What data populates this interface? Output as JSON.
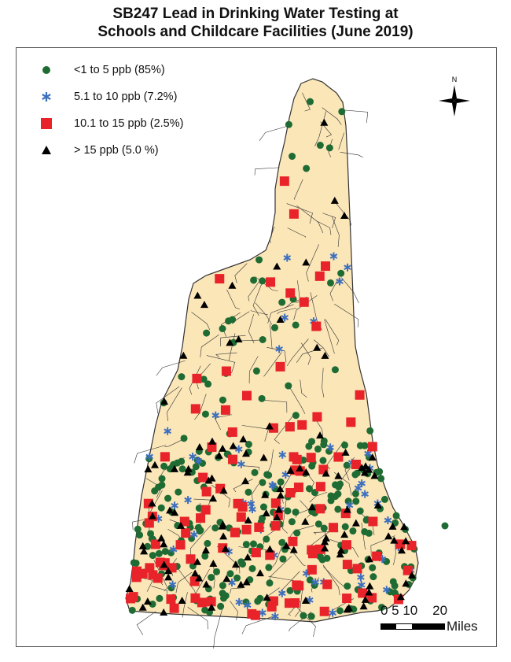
{
  "title": {
    "line1": "SB247 Lead in Drinking Water Testing at",
    "line2": "Schools and Childcare Facilities (June 2019)"
  },
  "legend": [
    {
      "label": "<1 to 5 ppb (85%)",
      "symbol": "circle",
      "color": "#1e6b33",
      "share": 0.85
    },
    {
      "label": "5.1 to 10 ppb (7.2%)",
      "symbol": "asterisk",
      "color": "#3c6fbe",
      "share": 0.072
    },
    {
      "label": "10.1 to 15 ppb (2.5%)",
      "symbol": "square",
      "color": "#e8232a",
      "share": 0.025
    },
    {
      "label": "> 15 ppb (5.0 %)",
      "symbol": "triangle",
      "color": "#000000",
      "share": 0.05
    }
  ],
  "compass": {
    "label": "N"
  },
  "scale_bar": {
    "ticks": "0 5 10    20",
    "unit": "Miles"
  },
  "colors": {
    "land": "#fbe6b8",
    "border": "#333333"
  }
}
